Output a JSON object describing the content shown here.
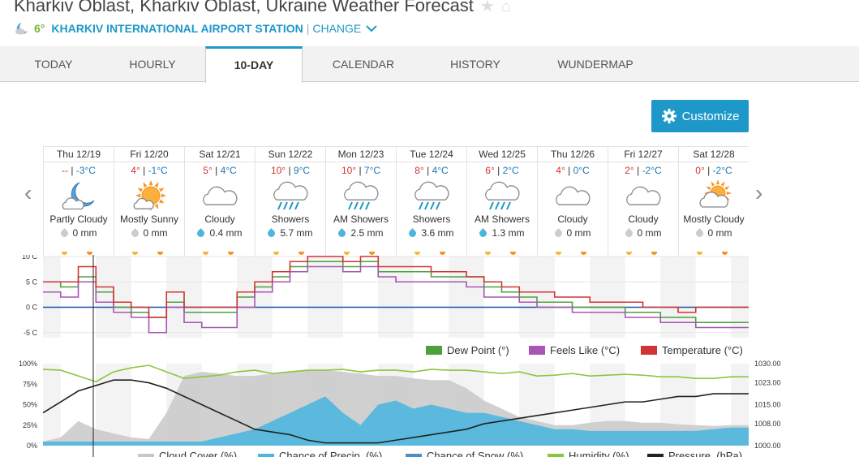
{
  "header": {
    "title": "Kharkiv Oblast, Kharkiv Oblast, Ukraine Weather Forecast",
    "current_temp": "6°",
    "station": "KHARKIV INTERNATIONAL AIRPORT STATION",
    "separator": "|",
    "change_label": "CHANGE"
  },
  "tabs": [
    {
      "label": "TODAY",
      "active": false
    },
    {
      "label": "HOURLY",
      "active": false
    },
    {
      "label": "10-DAY",
      "active": true
    },
    {
      "label": "CALENDAR",
      "active": false
    },
    {
      "label": "HISTORY",
      "active": false
    },
    {
      "label": "WUNDERMAP",
      "active": false
    }
  ],
  "customize_label": "Customize",
  "days": [
    {
      "date": "Thu 12/19",
      "high": "--",
      "low": "-3°C",
      "icon": "night-partly-cloudy",
      "condition": "Partly Cloudy",
      "precip": "0 mm",
      "rain": false
    },
    {
      "date": "Fri 12/20",
      "high": "4°",
      "low": "-1°C",
      "icon": "mostly-sunny",
      "condition": "Mostly Sunny",
      "precip": "0 mm",
      "rain": false
    },
    {
      "date": "Sat 12/21",
      "high": "5°",
      "low": "4°C",
      "icon": "cloudy",
      "condition": "Cloudy",
      "precip": "0.4 mm",
      "rain": true
    },
    {
      "date": "Sun 12/22",
      "high": "10°",
      "low": "9°C",
      "icon": "showers",
      "condition": "Showers",
      "precip": "5.7 mm",
      "rain": true
    },
    {
      "date": "Mon 12/23",
      "high": "10°",
      "low": "7°C",
      "icon": "showers",
      "condition": "AM Showers",
      "precip": "2.5 mm",
      "rain": true
    },
    {
      "date": "Tue 12/24",
      "high": "8°",
      "low": "4°C",
      "icon": "showers",
      "condition": "Showers",
      "precip": "3.6 mm",
      "rain": true
    },
    {
      "date": "Wed 12/25",
      "high": "6°",
      "low": "2°C",
      "icon": "showers",
      "condition": "AM Showers",
      "precip": "1.3 mm",
      "rain": true
    },
    {
      "date": "Thu 12/26",
      "high": "4°",
      "low": "0°C",
      "icon": "cloudy",
      "condition": "Cloudy",
      "precip": "0 mm",
      "rain": false
    },
    {
      "date": "Fri 12/27",
      "high": "2°",
      "low": "-2°C",
      "icon": "cloudy",
      "condition": "Cloudy",
      "precip": "0 mm",
      "rain": false
    },
    {
      "date": "Sat 12/28",
      "high": "0°",
      "low": "-2°C",
      "icon": "mostly-cloudy",
      "condition": "Mostly Cloudy",
      "precip": "0 mm",
      "rain": false
    }
  ],
  "colors": {
    "accent": "#1e98c9",
    "temperature": "#d03434",
    "feels_like": "#a855b5",
    "dew_point": "#4ea03f",
    "humidity": "#8cc63f",
    "precip": "#4cb6dd",
    "cloud": "#c8c8c8"
  },
  "chart_data": [
    {
      "type": "line",
      "y_ticks": [
        "10 C",
        "5 C",
        "0 C",
        "-5 C"
      ],
      "ylim": [
        -6,
        10
      ],
      "x_hours": [
        0,
        6,
        12,
        18,
        24,
        30,
        36,
        42,
        48,
        54,
        60,
        66,
        72,
        78,
        84,
        90,
        96,
        102,
        108,
        114,
        120,
        126,
        132,
        138,
        144,
        150,
        156,
        162,
        168,
        174,
        180,
        186,
        192,
        198,
        204,
        210,
        216,
        222,
        228,
        234
      ],
      "series": [
        {
          "name": "Dew Point (°)",
          "values": [
            5,
            4,
            6,
            3,
            0,
            -1,
            -2,
            1,
            -1,
            -1,
            -1,
            2,
            4,
            6,
            8,
            9,
            9,
            8,
            9,
            7,
            7,
            7,
            6,
            6,
            6,
            4,
            3,
            2,
            1,
            1,
            0,
            0,
            0,
            -1,
            -1,
            -2,
            -2,
            -3,
            -3,
            -3
          ]
        },
        {
          "name": "Feels Like (°C)",
          "values": [
            3,
            2,
            5,
            1,
            -1,
            -2,
            -5,
            0,
            -3,
            -4,
            -4,
            0,
            3,
            5,
            7,
            8,
            8,
            7,
            8,
            6,
            5,
            5,
            5,
            5,
            4,
            2,
            2,
            1,
            0,
            0,
            -1,
            -1,
            -1,
            -2,
            -2,
            -3,
            -3,
            -4,
            -4,
            -4
          ]
        },
        {
          "name": "Temperature (°C)",
          "values": [
            5,
            5,
            8,
            4,
            1,
            0,
            -2,
            3,
            0,
            0,
            0,
            3,
            5,
            7,
            9,
            10,
            10,
            9,
            10,
            8,
            8,
            8,
            7,
            7,
            6,
            5,
            4,
            3,
            3,
            2,
            2,
            1,
            1,
            1,
            0,
            0,
            -1,
            0,
            0,
            0
          ]
        }
      ]
    },
    {
      "type": "area",
      "y_ticks_left": [
        "100%",
        "75%",
        "50%",
        "25%",
        "0%"
      ],
      "y_ticks_right": [
        "1030.00",
        "1023.00",
        "1015.00",
        "1008.00",
        "1000.00"
      ],
      "ylim_left": [
        0,
        100
      ],
      "ylim_right": [
        1000,
        1030
      ],
      "x_hours": [
        0,
        6,
        12,
        18,
        24,
        30,
        36,
        42,
        48,
        54,
        60,
        66,
        72,
        78,
        84,
        90,
        96,
        102,
        108,
        114,
        120,
        126,
        132,
        138,
        144,
        150,
        156,
        162,
        168,
        174,
        180,
        186,
        192,
        198,
        204,
        210,
        216,
        222,
        228,
        234
      ],
      "series": [
        {
          "name": "Cloud Cover (%)",
          "values": [
            5,
            10,
            30,
            20,
            15,
            10,
            8,
            40,
            85,
            90,
            88,
            85,
            85,
            88,
            90,
            92,
            92,
            90,
            88,
            85,
            85,
            82,
            80,
            80,
            70,
            55,
            45,
            35,
            30,
            25,
            25,
            28,
            30,
            30,
            28,
            28,
            26,
            25,
            24,
            25
          ]
        },
        {
          "name": "Chance of Precip. (%)",
          "values": [
            5,
            5,
            5,
            5,
            5,
            5,
            5,
            5,
            5,
            5,
            10,
            15,
            20,
            30,
            40,
            50,
            60,
            40,
            25,
            50,
            55,
            45,
            50,
            45,
            40,
            40,
            35,
            30,
            25,
            20,
            20,
            18,
            18,
            18,
            18,
            18,
            18,
            18,
            20,
            22
          ]
        },
        {
          "name": "Chance of Snow (%)",
          "values": [
            0,
            0,
            0,
            0,
            0,
            0,
            0,
            0,
            0,
            0,
            0,
            0,
            0,
            0,
            0,
            0,
            0,
            0,
            0,
            0,
            0,
            0,
            0,
            0,
            0,
            0,
            0,
            0,
            0,
            0,
            0,
            0,
            0,
            0,
            0,
            0,
            0,
            0,
            0,
            0
          ]
        },
        {
          "name": "Humidity (%)",
          "values": [
            93,
            92,
            85,
            78,
            90,
            95,
            98,
            90,
            82,
            84,
            86,
            90,
            92,
            88,
            90,
            92,
            92,
            93,
            90,
            92,
            92,
            90,
            93,
            92,
            92,
            90,
            88,
            90,
            85,
            86,
            88,
            85,
            86,
            87,
            86,
            84,
            84,
            82,
            82,
            84
          ]
        },
        {
          "name": "Pressure. (hPa)",
          "values": [
            1012,
            1016,
            1020,
            1022,
            1024,
            1024,
            1023,
            1021,
            1018,
            1015,
            1012,
            1009,
            1006,
            1005,
            1004,
            1002,
            1001,
            1001,
            1001,
            1001,
            1002,
            1003,
            1004,
            1005,
            1006,
            1008,
            1009,
            1010,
            1011,
            1012,
            1013,
            1014,
            1015,
            1016,
            1016,
            1017,
            1018,
            1018,
            1019,
            1019
          ]
        }
      ]
    }
  ]
}
